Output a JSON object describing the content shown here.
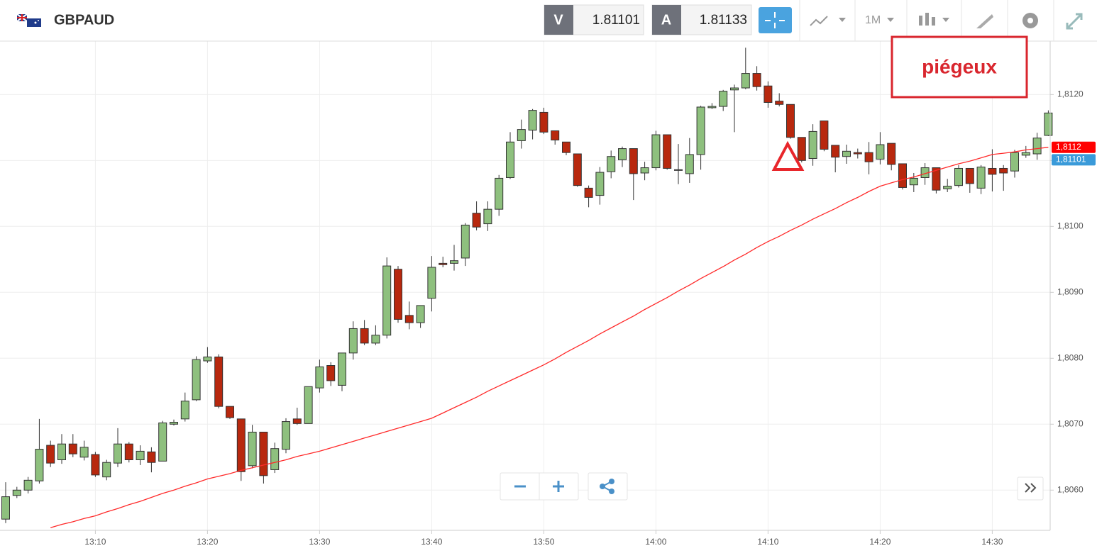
{
  "header": {
    "symbol": "GBPAUD",
    "bid_label": "V",
    "bid": 1.81101,
    "ask_label": "A",
    "ask": 1.81133,
    "timeframe": "1M"
  },
  "chart_data": {
    "type": "candlestick",
    "annotation": "piégeux",
    "categories": [
      null,
      null,
      null,
      null,
      null,
      null,
      null,
      null,
      "13:10",
      null,
      null,
      null,
      null,
      null,
      null,
      null,
      null,
      null,
      "13:20",
      null,
      null,
      null,
      null,
      null,
      null,
      null,
      null,
      null,
      "13:30",
      null,
      null,
      null,
      null,
      null,
      null,
      null,
      null,
      null,
      "13:40",
      null,
      null,
      null,
      null,
      null,
      null,
      null,
      null,
      null,
      "13:50",
      null,
      null,
      null,
      null,
      null,
      null,
      null,
      null,
      null,
      "14:00",
      null,
      null,
      null,
      null,
      null,
      null,
      null,
      null,
      null,
      "14:10",
      null,
      null,
      null,
      null,
      null,
      null,
      null,
      null,
      null,
      "14:20",
      null,
      null,
      null,
      null,
      null,
      null,
      null,
      null,
      null,
      "14:30",
      null,
      null,
      null,
      null,
      null
    ],
    "open": [
      1.80556,
      1.80592,
      1.806,
      1.80614,
      1.80668,
      1.80646,
      1.8067,
      1.8065,
      1.80654,
      1.8062,
      1.80641,
      1.8067,
      1.80646,
      1.80658,
      1.80644,
      1.807,
      1.80708,
      1.80737,
      1.80796,
      1.80802,
      1.80727,
      1.80708,
      1.80637,
      1.80688,
      1.80631,
      1.80662,
      1.80708,
      1.80701,
      1.80755,
      1.80789,
      1.80759,
      1.80808,
      1.80845,
      1.80823,
      1.80835,
      1.80935,
      1.80865,
      1.80854,
      1.80891,
      1.80944,
      1.80944,
      1.80952,
      1.8102,
      1.81004,
      1.81026,
      1.81074,
      1.8113,
      1.81146,
      1.81173,
      1.81145,
      1.81128,
      1.8111,
      1.81058,
      1.81047,
      1.81083,
      1.81101,
      1.81118,
      1.81081,
      1.81089,
      1.81139,
      1.81085,
      1.8108,
      1.81109,
      1.8118,
      1.81182,
      1.81207,
      1.8121,
      1.81232,
      1.81213,
      1.8119,
      1.81185,
      1.81135,
      1.81103,
      1.8116,
      1.81123,
      1.81106,
      1.81112,
      1.81112,
      1.81102,
      1.81126,
      1.81095,
      1.81063,
      1.81074,
      1.81089,
      1.81057,
      1.81062,
      1.81088,
      1.81058,
      1.81088,
      1.81088,
      1.81084,
      1.81108,
      1.8111,
      1.81138
    ],
    "high": [
      1.80612,
      1.80605,
      1.8062,
      1.80708,
      1.80675,
      1.80685,
      1.80685,
      1.80675,
      1.80658,
      1.80646,
      1.80694,
      1.80673,
      1.80668,
      1.80665,
      1.80705,
      1.80707,
      1.80748,
      1.80803,
      1.80817,
      1.80806,
      1.80727,
      1.80708,
      1.80699,
      1.80688,
      1.80672,
      1.80709,
      1.80725,
      1.80757,
      1.80798,
      1.80794,
      1.80808,
      1.80856,
      1.80858,
      1.8085,
      1.80953,
      1.8094,
      1.80886,
      1.8088,
      1.80955,
      1.80954,
      1.80972,
      1.81005,
      1.81038,
      1.81038,
      1.81078,
      1.81143,
      1.81162,
      1.81178,
      1.8118,
      1.81145,
      1.81128,
      1.8111,
      1.81062,
      1.8109,
      1.81115,
      1.81121,
      1.81118,
      1.81098,
      1.81145,
      1.81139,
      1.81125,
      1.81134,
      1.81183,
      1.81187,
      1.81207,
      1.81215,
      1.81271,
      1.81243,
      1.8122,
      1.81202,
      1.81185,
      1.81135,
      1.81155,
      1.8116,
      1.81123,
      1.81124,
      1.81118,
      1.81128,
      1.81143,
      1.81126,
      1.81095,
      1.81081,
      1.81096,
      1.81089,
      1.81072,
      1.81093,
      1.81088,
      1.81093,
      1.81117,
      1.81093,
      1.81116,
      1.81122,
      1.81142,
      1.81176
    ],
    "low": [
      1.8055,
      1.80588,
      1.80595,
      1.8061,
      1.80635,
      1.8064,
      1.8065,
      1.80645,
      1.8062,
      1.80615,
      1.80635,
      1.80642,
      1.80638,
      1.80627,
      1.80644,
      1.80698,
      1.80704,
      1.80735,
      1.80793,
      1.80724,
      1.80708,
      1.80614,
      1.80633,
      1.8061,
      1.80626,
      1.80656,
      1.80699,
      1.80701,
      1.80748,
      1.80758,
      1.8075,
      1.80798,
      1.8082,
      1.8082,
      1.8083,
      1.80854,
      1.80844,
      1.80846,
      1.80871,
      1.80938,
      1.80933,
      1.8094,
      1.80994,
      1.80993,
      1.81016,
      1.81072,
      1.81118,
      1.81132,
      1.8114,
      1.81124,
      1.81108,
      1.8106,
      1.81029,
      1.81033,
      1.81073,
      1.8109,
      1.8104,
      1.8107,
      1.81085,
      1.81086,
      1.81064,
      1.81066,
      1.81086,
      1.81178,
      1.81175,
      1.81143,
      1.81208,
      1.81206,
      1.8118,
      1.81182,
      1.81133,
      1.81097,
      1.81092,
      1.81114,
      1.81082,
      1.81095,
      1.81103,
      1.81079,
      1.81094,
      1.81085,
      1.81056,
      1.81052,
      1.81063,
      1.8105,
      1.81052,
      1.81059,
      1.81051,
      1.81049,
      1.81053,
      1.81054,
      1.81074,
      1.81104,
      1.81101,
      1.81137
    ],
    "close": [
      1.8059,
      1.806,
      1.80615,
      1.80662,
      1.80641,
      1.8067,
      1.80655,
      1.80665,
      1.80623,
      1.80642,
      1.8067,
      1.80646,
      1.80659,
      1.80642,
      1.80702,
      1.80703,
      1.80735,
      1.80798,
      1.80802,
      1.80727,
      1.8071,
      1.80628,
      1.80688,
      1.80622,
      1.80663,
      1.80704,
      1.80701,
      1.80757,
      1.80787,
      1.80766,
      1.80808,
      1.80845,
      1.80823,
      1.80835,
      1.8094,
      1.80859,
      1.80854,
      1.8088,
      1.80938,
      1.80942,
      1.80948,
      1.81002,
      1.80999,
      1.81026,
      1.81073,
      1.81128,
      1.81147,
      1.81176,
      1.81143,
      1.81131,
      1.81112,
      1.81062,
      1.81044,
      1.81082,
      1.81106,
      1.81118,
      1.8108,
      1.81089,
      1.81139,
      1.81088,
      1.81086,
      1.81109,
      1.81181,
      1.81182,
      1.81205,
      1.8121,
      1.81232,
      1.81212,
      1.81188,
      1.81185,
      1.81135,
      1.811,
      1.81144,
      1.81117,
      1.81105,
      1.81114,
      1.8111,
      1.81098,
      1.81124,
      1.81094,
      1.81059,
      1.81073,
      1.81089,
      1.81055,
      1.81061,
      1.81088,
      1.81065,
      1.8109,
      1.81079,
      1.81081,
      1.81112,
      1.81112,
      1.81134,
      1.81172
    ],
    "up_color": "#8ec07e",
    "down_color": "#b8280e",
    "moving_average": {
      "color": "#ff2a2a",
      "values": [
        null,
        null,
        null,
        null,
        1.80543,
        1.80548,
        1.80552,
        1.80557,
        1.80561,
        1.80567,
        1.80572,
        1.80578,
        1.80583,
        1.80589,
        1.80595,
        1.806,
        1.80606,
        1.80611,
        1.80617,
        1.80621,
        1.80625,
        1.8063,
        1.80634,
        1.80638,
        1.80642,
        1.80646,
        1.80651,
        1.80655,
        1.80659,
        1.80664,
        1.80669,
        1.80674,
        1.80679,
        1.80684,
        1.80689,
        1.80694,
        1.80699,
        1.80704,
        1.80709,
        1.80717,
        1.80725,
        1.80733,
        1.80741,
        1.8075,
        1.80758,
        1.80766,
        1.80774,
        1.80782,
        1.8079,
        1.80799,
        1.80809,
        1.80818,
        1.80827,
        1.80837,
        1.80846,
        1.80855,
        1.80864,
        1.80874,
        1.80883,
        1.80892,
        1.80902,
        1.80911,
        1.80921,
        1.8093,
        1.80939,
        1.80949,
        1.80958,
        1.80968,
        1.80977,
        1.80985,
        1.80994,
        1.81002,
        1.81011,
        1.81019,
        1.81027,
        1.81036,
        1.81044,
        1.81053,
        1.81061,
        1.81066,
        1.81071,
        1.81075,
        1.8108,
        1.81085,
        1.8109,
        1.81095,
        1.81099,
        1.81104,
        1.81109,
        1.81111,
        1.81113,
        1.81116,
        1.81118,
        1.8112
      ]
    },
    "price_labels": [
      {
        "value": 1.8112,
        "label": "1,8112",
        "color": "#ff0000"
      },
      {
        "value": 1.81101,
        "label": "1,81101",
        "color": "#3a9ad9"
      }
    ],
    "ylim": [
      1.80539,
      1.81281
    ],
    "yticks": [
      {
        "value": 1.806,
        "label": "1,8060"
      },
      {
        "value": 1.807,
        "label": "1,8070"
      },
      {
        "value": 1.808,
        "label": "1,8080"
      },
      {
        "value": 1.809,
        "label": "1,8090"
      },
      {
        "value": 1.81,
        "label": "1,8100"
      },
      {
        "value": 1.811,
        "label": "1,8110"
      },
      {
        "value": 1.812,
        "label": "1,8120"
      }
    ],
    "grid": true
  }
}
